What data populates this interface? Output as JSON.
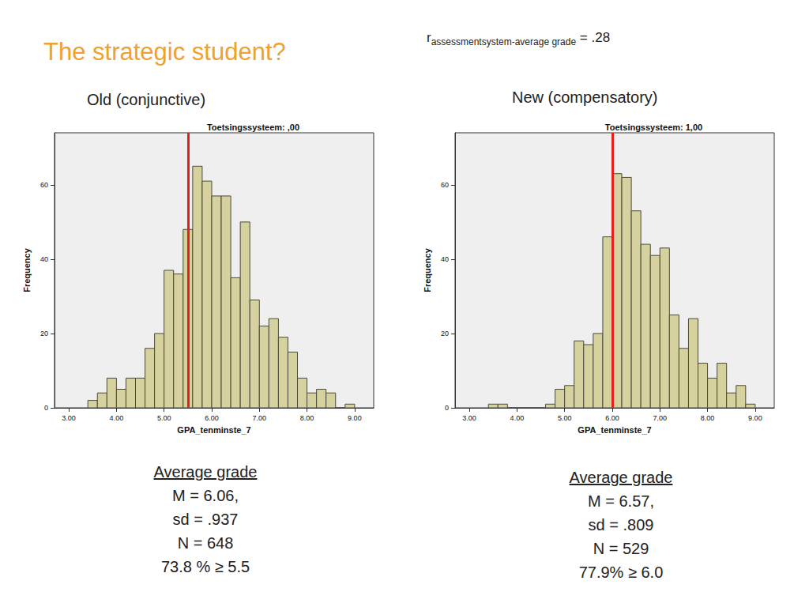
{
  "header": {
    "title": "The strategic student?",
    "correlation": {
      "symbol": "r",
      "subscript": "assessmentsystem-average grade",
      "text": "= .28"
    }
  },
  "panels": [
    {
      "label": "Old (conjunctive)",
      "stats": {
        "heading": "Average grade",
        "lines": [
          "M = 6.06,",
          "sd = .937",
          "N = 648",
          "73.8 % ≥ 5.5"
        ]
      }
    },
    {
      "label": "New (compensatory)",
      "stats": {
        "heading": "Average grade",
        "lines": [
          "M = 6.57,",
          "sd = .809",
          "N = 529",
          "77.9% ≥ 6.0"
        ]
      }
    }
  ],
  "chart_data": [
    {
      "type": "histogram",
      "title": "Toetsingssysteem: ,00",
      "xlabel": "GPA_tenminste_7",
      "ylabel": "Frequency",
      "bins": [
        3.4,
        3.6,
        3.8,
        4.0,
        4.2,
        4.4,
        4.6,
        4.8,
        5.0,
        5.2,
        5.4,
        5.6,
        5.8,
        6.0,
        6.2,
        6.4,
        6.6,
        6.8,
        7.0,
        7.2,
        7.4,
        7.6,
        7.8,
        8.0,
        8.2,
        8.4,
        8.6,
        8.8,
        9.0
      ],
      "counts": [
        2,
        4,
        8,
        5,
        8,
        8,
        16,
        20,
        37,
        36,
        48,
        65,
        61,
        57,
        57,
        35,
        50,
        29,
        22,
        24,
        19,
        15,
        8,
        4,
        5,
        4,
        0,
        1
      ],
      "color": "#d6d29f",
      "reference_line": {
        "x": 5.5,
        "color": "#e3211c"
      },
      "xlim": [
        2.7,
        9.4
      ],
      "xticks": [
        {
          "value": 3,
          "label": "3.00"
        },
        {
          "value": 4,
          "label": "4.00"
        },
        {
          "value": 5,
          "label": "5.00"
        },
        {
          "value": 6,
          "label": "6.00"
        },
        {
          "value": 7,
          "label": "7.00"
        },
        {
          "value": 8,
          "label": "8.00"
        },
        {
          "value": 9,
          "label": "9.00"
        }
      ],
      "ylim": [
        0,
        74
      ],
      "yticks": [
        0,
        20,
        40,
        60
      ],
      "grid": false
    },
    {
      "type": "histogram",
      "title": "Toetsingssysteem: 1,00",
      "xlabel": "GPA_tenminste_7",
      "ylabel": "Frequency",
      "bins": [
        3.4,
        3.6,
        3.8,
        4.0,
        4.2,
        4.4,
        4.6,
        4.8,
        5.0,
        5.2,
        5.4,
        5.6,
        5.8,
        6.0,
        6.2,
        6.4,
        6.6,
        6.8,
        7.0,
        7.2,
        7.4,
        7.6,
        7.8,
        8.0,
        8.2,
        8.4,
        8.6,
        8.8,
        9.0
      ],
      "counts": [
        1,
        1,
        0,
        0,
        0,
        0,
        1,
        5,
        6,
        18,
        17,
        20,
        46,
        63,
        62,
        53,
        44,
        41,
        43,
        25,
        16,
        24,
        12,
        8,
        12,
        4,
        6,
        1
      ],
      "color": "#d6d29f",
      "reference_line": {
        "x": 6.0,
        "color": "#e3211c"
      },
      "xlim": [
        2.7,
        9.4
      ],
      "xticks": [
        {
          "value": 3,
          "label": "3.00"
        },
        {
          "value": 4,
          "label": "4.00"
        },
        {
          "value": 5,
          "label": "5.00"
        },
        {
          "value": 6,
          "label": "6.00"
        },
        {
          "value": 7,
          "label": "7.00"
        },
        {
          "value": 8,
          "label": "8.00"
        },
        {
          "value": 9,
          "label": "9.00"
        }
      ],
      "ylim": [
        0,
        74
      ],
      "yticks": [
        0,
        20,
        40,
        60
      ],
      "grid": false
    }
  ]
}
